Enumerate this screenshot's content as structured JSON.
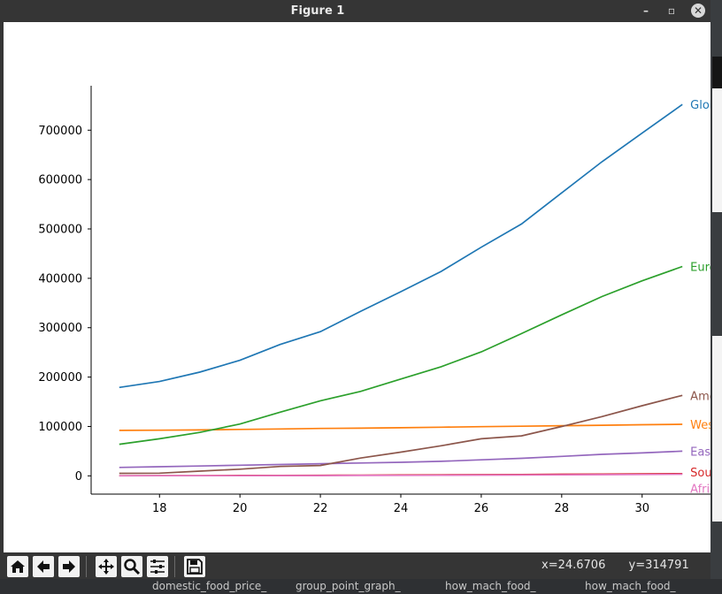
{
  "window": {
    "title": "Figure 1",
    "minimize_symbol": "–",
    "restore_symbol": "▫",
    "close_symbol": "✕"
  },
  "toolbar": {
    "tools": [
      "home-icon",
      "back-arrow-icon",
      "forward-arrow-icon",
      "pan-icon",
      "zoom-icon",
      "configure-icon",
      "save-icon"
    ],
    "x_readout": "x=24.6706",
    "y_readout": "y=314791"
  },
  "background": {
    "taskbar_items": [
      "domestic_food_price_",
      "group_point_graph_",
      "how_mach_food_",
      "how_mach_food_"
    ]
  },
  "chart_data": {
    "type": "line",
    "title": "",
    "xlabel": "",
    "ylabel": "",
    "xlim": [
      16.3,
      31.7
    ],
    "ylim": [
      -37000,
      790000
    ],
    "xticks": [
      18,
      20,
      22,
      24,
      26,
      28,
      30
    ],
    "yticks": [
      0,
      100000,
      200000,
      300000,
      400000,
      500000,
      600000,
      700000
    ],
    "grid": false,
    "legend": "end-of-line labels",
    "x": [
      17,
      18,
      19,
      20,
      21,
      22,
      23,
      24,
      25,
      26,
      27,
      28,
      29,
      30,
      31
    ],
    "series": [
      {
        "name": "Globally",
        "color": "#1f77b4",
        "values": [
          179000,
          191000,
          210000,
          234000,
          266000,
          292000,
          333000,
          373000,
          414000,
          463000,
          510000,
          573000,
          636000,
          694000,
          752000
        ]
      },
      {
        "name": "Western Pacific",
        "color": "#ff7f0e",
        "values": [
          92000,
          92500,
          93000,
          94000,
          95000,
          96000,
          96500,
          97500,
          98500,
          99500,
          100500,
          101500,
          102500,
          103500,
          104500
        ]
      },
      {
        "name": "European",
        "color": "#2ca02c",
        "values": [
          64000,
          75000,
          88000,
          105000,
          129000,
          152000,
          171000,
          196000,
          221000,
          251000,
          288000,
          326000,
          363000,
          395000,
          424000
        ]
      },
      {
        "name": "South-East Asia",
        "color": "#d62728",
        "values": [
          300,
          400,
          500,
          700,
          900,
          1100,
          1300,
          1600,
          2000,
          2400,
          2800,
          3200,
          3600,
          4000,
          4500
        ]
      },
      {
        "name": "Eastern Mediterranean",
        "color": "#9467bd",
        "values": [
          17000,
          18500,
          20000,
          21500,
          23000,
          24500,
          26000,
          27500,
          29500,
          32500,
          35500,
          39500,
          43500,
          46500,
          50000
        ]
      },
      {
        "name": "Americas",
        "color": "#8c564b",
        "values": [
          5000,
          5500,
          9500,
          13500,
          19000,
          21000,
          36000,
          48000,
          61000,
          75000,
          81000,
          100000,
          120000,
          142000,
          163000
        ]
      },
      {
        "name": "African",
        "color": "#e377c2",
        "values": [
          100,
          150,
          200,
          300,
          400,
          500,
          700,
          900,
          1100,
          1400,
          1700,
          2000,
          2400,
          2800,
          3200
        ]
      }
    ]
  }
}
